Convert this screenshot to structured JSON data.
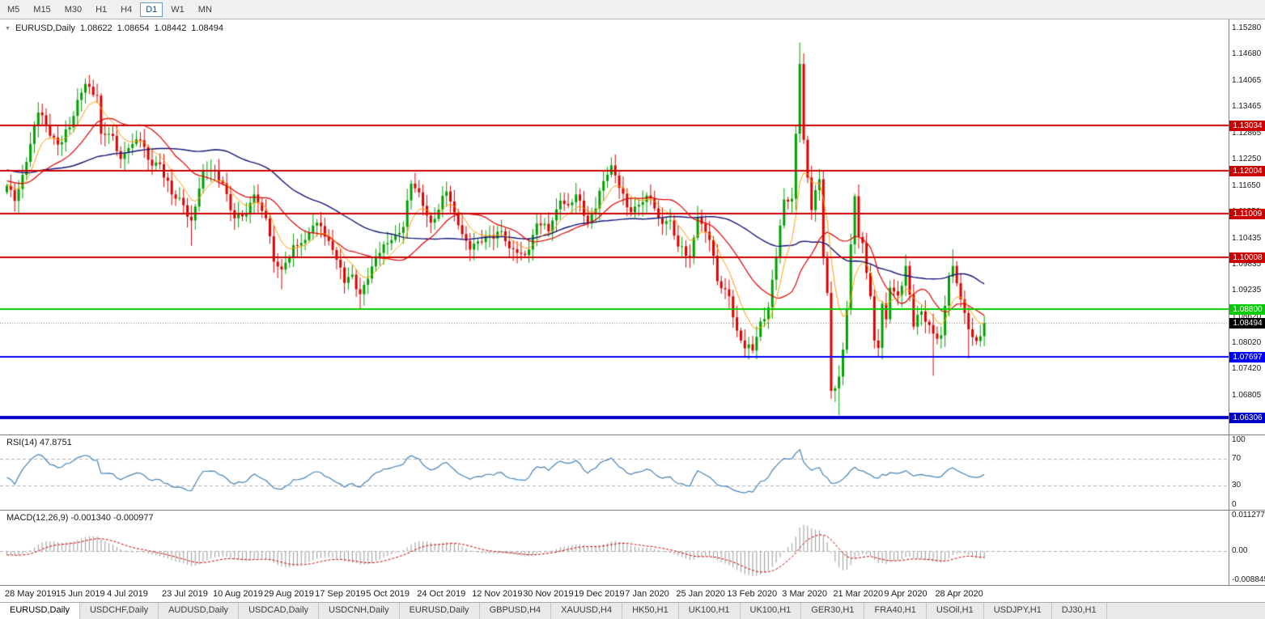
{
  "toolbar": {
    "timeframes": [
      "M5",
      "M15",
      "M30",
      "H1",
      "H4",
      "D1",
      "W1",
      "MN"
    ],
    "active_timeframe": "D1"
  },
  "icons": {
    "collapse": "▼"
  },
  "chart": {
    "symbol": "EURUSD,Daily",
    "open": "1.08622",
    "high": "1.08654",
    "low": "1.08442",
    "close": "1.08494"
  },
  "rsi": {
    "label": "RSI(14) 47.8751",
    "levels": [
      "100",
      "70",
      "30",
      "0"
    ]
  },
  "macd": {
    "label": "MACD(12,26,9) -0.001340 -0.000977",
    "axis": [
      "0.011277",
      "0.00",
      "-0.008845"
    ]
  },
  "tabs": {
    "active_index": 0,
    "items": [
      "EURUSD,Daily",
      "USDCHF,Daily",
      "AUDUSD,Daily",
      "USDCAD,Daily",
      "USDCNH,Daily",
      "EURUSD,Daily",
      "GBPUSD,H4",
      "XAUUSD,H4",
      "HK50,H1",
      "UK100,H1",
      "UK100,H1",
      "GER30,H1",
      "FRA40,H1",
      "USOil,H1",
      "USDJPY,H1",
      "DJ30,H1"
    ]
  },
  "colors": {
    "candle_up": "#00a000",
    "candle_down": "#dd0000",
    "ma_fast": "#ff9d00",
    "ma_mid": "#e00000",
    "ma_slow": "#141478",
    "rsi_line": "#4682b4",
    "macd_hist": "#9a9a9a",
    "macd_signal": "#cc0000",
    "bid_line": "#808080",
    "level_dash": "#b0b0b0"
  },
  "chart_data": {
    "type": "candlestick",
    "symbol": "EURUSD",
    "timeframe": "Daily",
    "bars": 250,
    "price_axis": {
      "top": 1.1545,
      "bottom": 1.0595
    },
    "current_price": 1.08494,
    "axis_ticks": [
      "1.15280",
      "1.14680",
      "1.14065",
      "1.13465",
      "1.12865",
      "1.12250",
      "1.11650",
      "1.11050",
      "1.10435",
      "1.09835",
      "1.09235",
      "1.08620",
      "1.08020",
      "1.07420",
      "1.06805",
      "1.06205"
    ],
    "hlines": [
      {
        "price": 1.13034,
        "label": "1.13034",
        "color": "#cc0000",
        "width": 2
      },
      {
        "price": 1.12004,
        "label": "1.12004",
        "color": "#cc0000",
        "width": 2
      },
      {
        "price": 1.11009,
        "label": "1.11009",
        "color": "#cc0000",
        "width": 2
      },
      {
        "price": 1.10008,
        "label": "1.10008",
        "color": "#cc0000",
        "width": 2
      },
      {
        "price": 1.088,
        "label": "1.08800",
        "color": "#00cc00",
        "width": 2
      },
      {
        "price": 1.07697,
        "label": "1.07697",
        "color": "#0000ff",
        "width": 2
      },
      {
        "price": 1.06306,
        "label": "1.06306",
        "color": "#0000c8",
        "width": 4
      }
    ],
    "anchors": [
      [
        0,
        1.1165
      ],
      [
        2,
        1.113
      ],
      [
        5,
        1.122
      ],
      [
        8,
        1.1334
      ],
      [
        10,
        1.1305
      ],
      [
        13,
        1.126
      ],
      [
        16,
        1.13
      ],
      [
        19,
        1.138
      ],
      [
        20,
        1.14
      ],
      [
        23,
        1.1373
      ],
      [
        24,
        1.1285
      ],
      [
        27,
        1.128
      ],
      [
        29,
        1.1227
      ],
      [
        31,
        1.1252
      ],
      [
        34,
        1.127
      ],
      [
        36,
        1.1225
      ],
      [
        39,
        1.1215
      ],
      [
        42,
        1.1145
      ],
      [
        45,
        1.112
      ],
      [
        47,
        1.1085
      ],
      [
        50,
        1.12
      ],
      [
        53,
        1.12
      ],
      [
        55,
        1.1171
      ],
      [
        58,
        1.109
      ],
      [
        61,
        1.11
      ],
      [
        63,
        1.1145
      ],
      [
        66,
        1.109
      ],
      [
        68,
        1.099
      ],
      [
        70,
        1.0972
      ],
      [
        73,
        1.1028
      ],
      [
        76,
        1.104
      ],
      [
        78,
        1.1073
      ],
      [
        80,
        1.1072
      ],
      [
        83,
        1.1017
      ],
      [
        86,
        1.0941
      ],
      [
        88,
        1.096
      ],
      [
        90,
        1.0915
      ],
      [
        93,
        1.0979
      ],
      [
        96,
        1.103
      ],
      [
        98,
        1.104
      ],
      [
        101,
        1.107
      ],
      [
        103,
        1.117
      ],
      [
        105,
        1.115
      ],
      [
        108,
        1.108
      ],
      [
        110,
        1.111
      ],
      [
        112,
        1.1152
      ],
      [
        115,
        1.1074
      ],
      [
        118,
        1.1018
      ],
      [
        121,
        1.1035
      ],
      [
        123,
        1.1051
      ],
      [
        126,
        1.106
      ],
      [
        128,
        1.1021
      ],
      [
        131,
        1.1008
      ],
      [
        133,
        1.1018
      ],
      [
        135,
        1.1078
      ],
      [
        138,
        1.106
      ],
      [
        141,
        1.1131
      ],
      [
        143,
        1.112
      ],
      [
        145,
        1.1145
      ],
      [
        148,
        1.1078
      ],
      [
        152,
        1.1176
      ],
      [
        154,
        1.1212
      ],
      [
        156,
        1.116
      ],
      [
        159,
        1.1104
      ],
      [
        161,
        1.1121
      ],
      [
        164,
        1.1136
      ],
      [
        166,
        1.109
      ],
      [
        169,
        1.1085
      ],
      [
        171,
        1.1025
      ],
      [
        174,
        1.1
      ],
      [
        176,
        1.1093
      ],
      [
        179,
        1.104
      ],
      [
        181,
        1.0945
      ],
      [
        184,
        1.091
      ],
      [
        186,
        1.0831
      ],
      [
        188,
        1.079
      ],
      [
        190,
        1.0785
      ],
      [
        192,
        1.0852
      ],
      [
        194,
        1.0885
      ],
      [
        196,
        1.1001
      ],
      [
        198,
        1.1133
      ],
      [
        200,
        1.1135
      ],
      [
        201,
        1.1285
      ],
      [
        202,
        1.1446
      ],
      [
        203,
        1.1271
      ],
      [
        204,
        1.1184
      ],
      [
        205,
        1.1109
      ],
      [
        207,
        1.118
      ],
      [
        208,
        1.0998
      ],
      [
        209,
        1.0918
      ],
      [
        210,
        1.0692
      ],
      [
        211,
        1.0698
      ],
      [
        212,
        1.0725
      ],
      [
        213,
        1.0787
      ],
      [
        214,
        1.088
      ],
      [
        215,
        1.103
      ],
      [
        216,
        1.1141
      ],
      [
        217,
        1.1047
      ],
      [
        218,
        1.1033
      ],
      [
        219,
        1.0964
      ],
      [
        220,
        1.091
      ],
      [
        221,
        1.0808
      ],
      [
        222,
        1.0791
      ],
      [
        223,
        1.0893
      ],
      [
        224,
        1.0857
      ],
      [
        225,
        1.093
      ],
      [
        227,
        1.0912
      ],
      [
        229,
        1.098
      ],
      [
        231,
        1.084
      ],
      [
        233,
        1.0875
      ],
      [
        236,
        1.0824
      ],
      [
        238,
        1.082
      ],
      [
        240,
        1.0955
      ],
      [
        241,
        1.098
      ],
      [
        243,
        1.0903
      ],
      [
        245,
        1.0834
      ],
      [
        247,
        1.0807
      ],
      [
        248,
        1.0818
      ],
      [
        249,
        1.0849
      ]
    ],
    "specials": {
      "20": {
        "high": 1.1412
      },
      "47": {
        "low": 1.1027
      },
      "70": {
        "low": 1.0926
      },
      "90": {
        "low": 1.0879
      },
      "190": {
        "low": 1.0778
      },
      "202": {
        "high": 1.1495
      },
      "212": {
        "low": 1.0636
      },
      "216": {
        "high": 1.1147
      },
      "222": {
        "low": 1.0769
      },
      "236": {
        "low": 1.0727
      },
      "241": {
        "high": 1.1019
      },
      "245": {
        "low": 1.0767
      }
    },
    "date_labels": [
      {
        "label": "28 May 2019",
        "day": 0
      },
      {
        "label": "15 Jun 2019",
        "day": 13
      },
      {
        "label": "4 Jul 2019",
        "day": 26
      },
      {
        "label": "23 Jul 2019",
        "day": 40
      },
      {
        "label": "10 Aug 2019",
        "day": 53
      },
      {
        "label": "29 Aug 2019",
        "day": 66
      },
      {
        "label": "17 Sep 2019",
        "day": 79
      },
      {
        "label": "5 Oct 2019",
        "day": 92
      },
      {
        "label": "24 Oct 2019",
        "day": 105
      },
      {
        "label": "12 Nov 2019",
        "day": 119
      },
      {
        "label": "30 Nov 2019",
        "day": 132
      },
      {
        "label": "19 Dec 2019",
        "day": 145
      },
      {
        "label": "7 Jan 2020",
        "day": 158
      },
      {
        "label": "25 Jan 2020",
        "day": 171
      },
      {
        "label": "13 Feb 2020",
        "day": 184
      },
      {
        "label": "3 Mar 2020",
        "day": 198
      },
      {
        "label": "21 Mar 2020",
        "day": 211
      },
      {
        "label": "9 Apr 2020",
        "day": 224
      },
      {
        "label": "28 Apr 2020",
        "day": 237
      }
    ],
    "indicators": {
      "ma_fast": {
        "type": "ema",
        "period": 8
      },
      "ma_mid": {
        "type": "sma",
        "period": 20
      },
      "ma_slow": {
        "type": "sma",
        "period": 50
      },
      "rsi_period": 14,
      "macd": {
        "fast": 12,
        "slow": 26,
        "signal": 9
      }
    }
  }
}
